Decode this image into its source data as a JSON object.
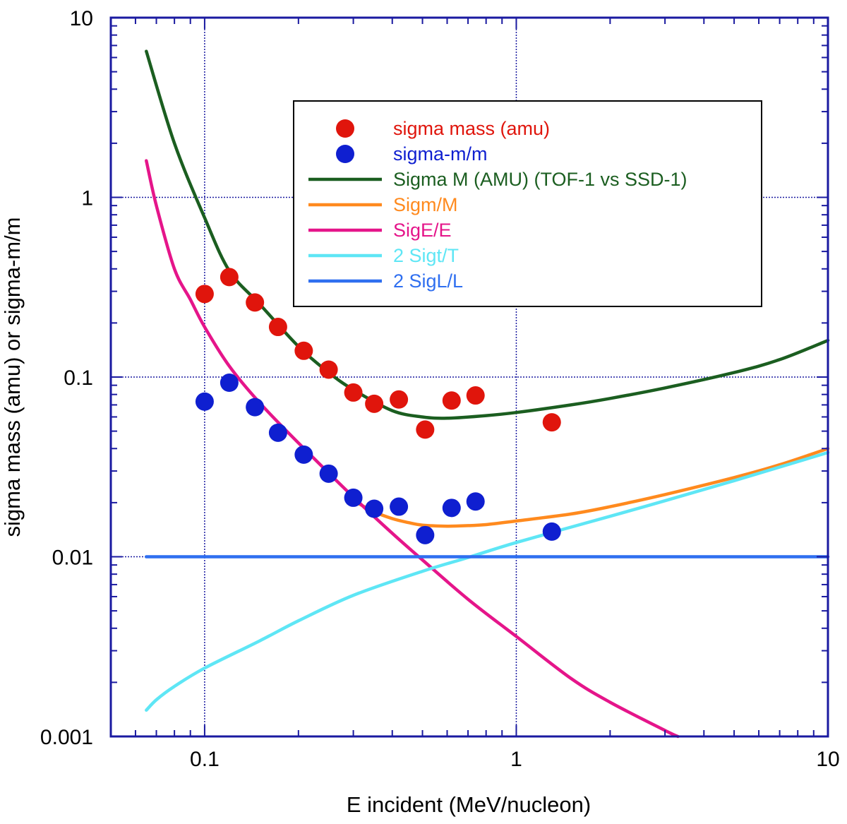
{
  "chart_data": {
    "type": "scatter",
    "title": "",
    "xlabel": "E incident (MeV/nucleon)",
    "ylabel": "sigma mass (amu) or sigma-m/m",
    "xscale": "log",
    "yscale": "log",
    "xlim": [
      0.05,
      10
    ],
    "ylim": [
      0.001,
      10
    ],
    "grid": true,
    "legend_position": "upper-center",
    "x_ticks": [
      {
        "value": 0.1,
        "label": "0.1"
      },
      {
        "value": 1,
        "label": "1"
      },
      {
        "value": 10,
        "label": "10"
      }
    ],
    "y_ticks": [
      {
        "value": 0.001,
        "label": "0.001"
      },
      {
        "value": 0.01,
        "label": "0.01"
      },
      {
        "value": 0.1,
        "label": "0.1"
      },
      {
        "value": 1,
        "label": "1"
      },
      {
        "value": 10,
        "label": "10"
      }
    ],
    "series": [
      {
        "name": "sigma mass (amu)",
        "kind": "points",
        "color": "#e0150c",
        "x": [
          0.1,
          0.12,
          0.145,
          0.172,
          0.208,
          0.25,
          0.3,
          0.35,
          0.42,
          0.51,
          0.62,
          0.74,
          1.3
        ],
        "y": [
          0.29,
          0.36,
          0.26,
          0.19,
          0.14,
          0.11,
          0.082,
          0.071,
          0.075,
          0.051,
          0.074,
          0.079,
          0.056
        ]
      },
      {
        "name": "sigma-m/m",
        "kind": "points",
        "color": "#0f1fd0",
        "x": [
          0.1,
          0.12,
          0.145,
          0.172,
          0.208,
          0.25,
          0.3,
          0.35,
          0.42,
          0.51,
          0.62,
          0.74,
          1.3
        ],
        "y": [
          0.073,
          0.093,
          0.068,
          0.049,
          0.037,
          0.029,
          0.0213,
          0.0185,
          0.019,
          0.0132,
          0.0187,
          0.0203,
          0.0138
        ]
      },
      {
        "name": "Sigma M (AMU) (TOF-1 vs SSD-1)",
        "kind": "line",
        "color": "#1b5e20",
        "x": [
          0.065,
          0.08,
          0.1,
          0.12,
          0.15,
          0.2,
          0.25,
          0.3,
          0.4,
          0.5,
          0.6,
          0.8,
          1,
          1.5,
          2,
          3,
          5,
          7,
          10
        ],
        "y": [
          6.5,
          2.0,
          0.77,
          0.39,
          0.255,
          0.148,
          0.106,
          0.085,
          0.065,
          0.06,
          0.059,
          0.061,
          0.0635,
          0.07,
          0.076,
          0.087,
          0.106,
          0.125,
          0.16
        ]
      },
      {
        "name": "Sigm/M",
        "kind": "line",
        "color": "#ff8a1e",
        "x": [
          0.3,
          0.35,
          0.4,
          0.45,
          0.5,
          0.6,
          0.7,
          0.8,
          1,
          1.5,
          2,
          3,
          5,
          7,
          10
        ],
        "y": [
          0.0205,
          0.0178,
          0.0163,
          0.0155,
          0.015,
          0.0148,
          0.0149,
          0.0151,
          0.0158,
          0.0173,
          0.019,
          0.0222,
          0.0276,
          0.0325,
          0.04
        ]
      },
      {
        "name": "SigE/E",
        "kind": "line",
        "color": "#e5158a",
        "x": [
          0.065,
          0.07,
          0.08,
          0.09,
          0.1,
          0.12,
          0.15,
          0.2,
          0.3,
          0.4,
          0.5,
          0.7,
          1,
          1.5,
          2,
          3,
          3.3
        ],
        "y": [
          1.6,
          0.9,
          0.4,
          0.27,
          0.19,
          0.115,
          0.072,
          0.043,
          0.0215,
          0.0135,
          0.0096,
          0.0058,
          0.0036,
          0.0021,
          0.00155,
          0.00108,
          0.001
        ]
      },
      {
        "name": "2 Sigt/T",
        "kind": "line",
        "color": "#5ee6f5",
        "x": [
          0.065,
          0.07,
          0.08,
          0.1,
          0.15,
          0.2,
          0.3,
          0.5,
          0.7,
          1,
          2,
          3,
          5,
          10
        ],
        "y": [
          0.0014,
          0.0016,
          0.0019,
          0.0024,
          0.0034,
          0.0044,
          0.0061,
          0.0083,
          0.0099,
          0.012,
          0.0168,
          0.0205,
          0.0265,
          0.038
        ]
      },
      {
        "name": "2 SigL/L",
        "kind": "line",
        "color": "#2f6ff0",
        "x": [
          0.065,
          10
        ],
        "y": [
          0.01,
          0.01
        ]
      }
    ]
  }
}
